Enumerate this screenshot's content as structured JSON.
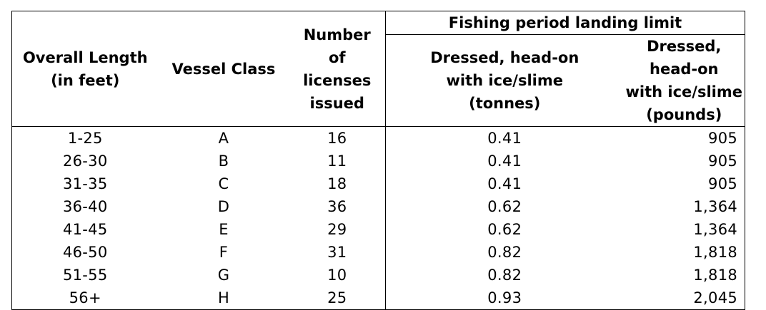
{
  "table": {
    "headers": {
      "overall_length": [
        "Overall Length",
        "(in feet)"
      ],
      "vessel_class": [
        "Vessel Class"
      ],
      "licenses": [
        "Number",
        "of",
        "licenses",
        "issued"
      ],
      "group": "Fishing period landing limit",
      "tonnes": [
        "Dressed, head-on",
        "with ice/slime",
        "(tonnes)"
      ],
      "pounds": [
        "Dressed, head-on",
        "with ice/slime",
        "(pounds)"
      ]
    },
    "rows": [
      {
        "length": "1-25",
        "class": "A",
        "licenses": "16",
        "tonnes": "0.41",
        "pounds": "905"
      },
      {
        "length": "26-30",
        "class": "B",
        "licenses": "11",
        "tonnes": "0.41",
        "pounds": "905"
      },
      {
        "length": "31-35",
        "class": "C",
        "licenses": "18",
        "tonnes": "0.41",
        "pounds": "905"
      },
      {
        "length": "36-40",
        "class": "D",
        "licenses": "36",
        "tonnes": "0.62",
        "pounds": "1,364"
      },
      {
        "length": "41-45",
        "class": "E",
        "licenses": "29",
        "tonnes": "0.62",
        "pounds": "1,364"
      },
      {
        "length": "46-50",
        "class": "F",
        "licenses": "31",
        "tonnes": "0.82",
        "pounds": "1,818"
      },
      {
        "length": "51-55",
        "class": "G",
        "licenses": "10",
        "tonnes": "0.82",
        "pounds": "1,818"
      },
      {
        "length": "56+",
        "class": "H",
        "licenses": "25",
        "tonnes": "0.93",
        "pounds": "2,045"
      }
    ]
  }
}
